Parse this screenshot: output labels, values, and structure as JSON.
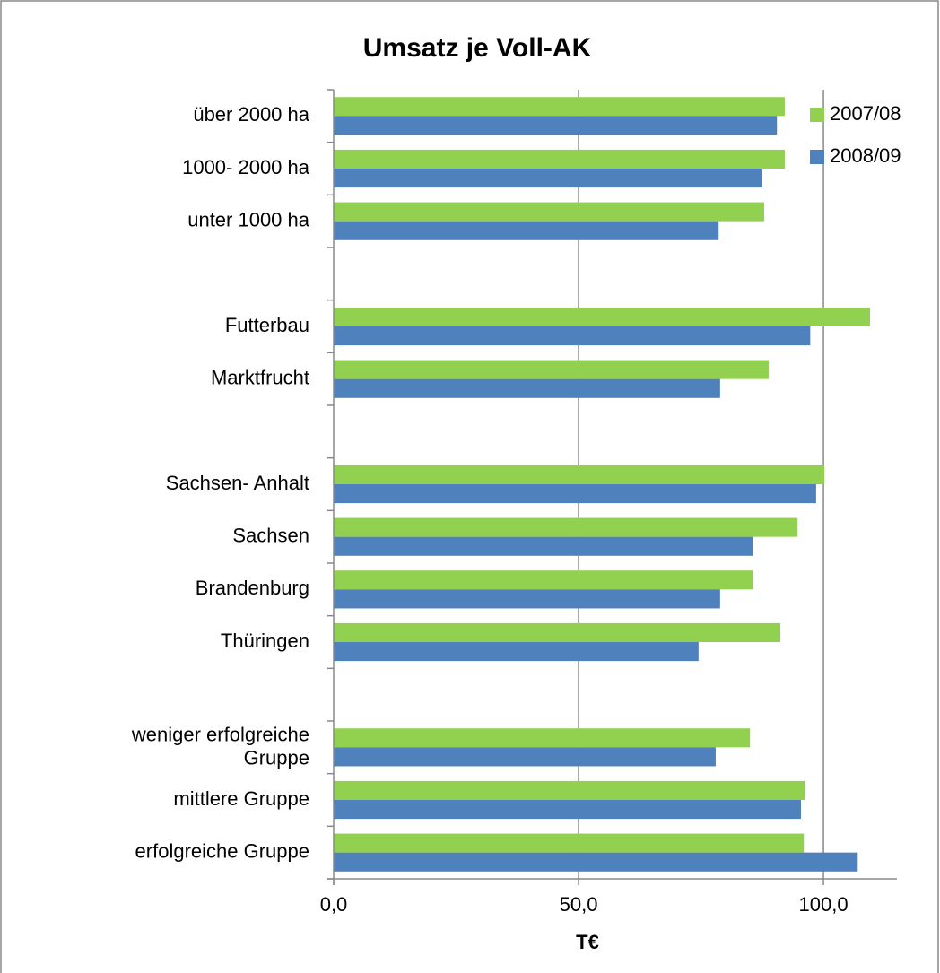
{
  "chart_data": {
    "type": "bar",
    "orientation": "horizontal",
    "title": "Umsatz je Voll-AK",
    "x_label": "T€",
    "categories": [
      "über 2000  ha",
      "1000- 2000 ha",
      "unter 1000 ha",
      null,
      "Futterbau",
      "Marktfrucht",
      null,
      "Sachsen- Anhalt",
      "Sachsen",
      "Brandenburg",
      "Thüringen",
      null,
      "weniger erfolgreiche\nGruppe",
      "mittlere Gruppe",
      "erfolgreiche Gruppe"
    ],
    "series": [
      {
        "name": "2007/08",
        "color": "#92d050",
        "values": [
          92.1,
          92.1,
          87.9,
          null,
          109.5,
          88.8,
          null,
          100.2,
          94.7,
          85.7,
          91.2,
          null,
          85.0,
          96.3,
          96.0
        ]
      },
      {
        "name": "2008/09",
        "color": "#4f81bd",
        "values": [
          90.5,
          87.5,
          78.6,
          null,
          97.3,
          78.9,
          null,
          98.5,
          85.7,
          78.9,
          74.5,
          null,
          78.0,
          95.4,
          107.0
        ]
      }
    ],
    "xlim": [
      0,
      115
    ],
    "xticks": [
      {
        "value": 0,
        "label": "0,0"
      },
      {
        "value": 50,
        "label": "50,0"
      },
      {
        "value": 100,
        "label": "100,0"
      }
    ],
    "grid": true,
    "legend": "top-right"
  }
}
